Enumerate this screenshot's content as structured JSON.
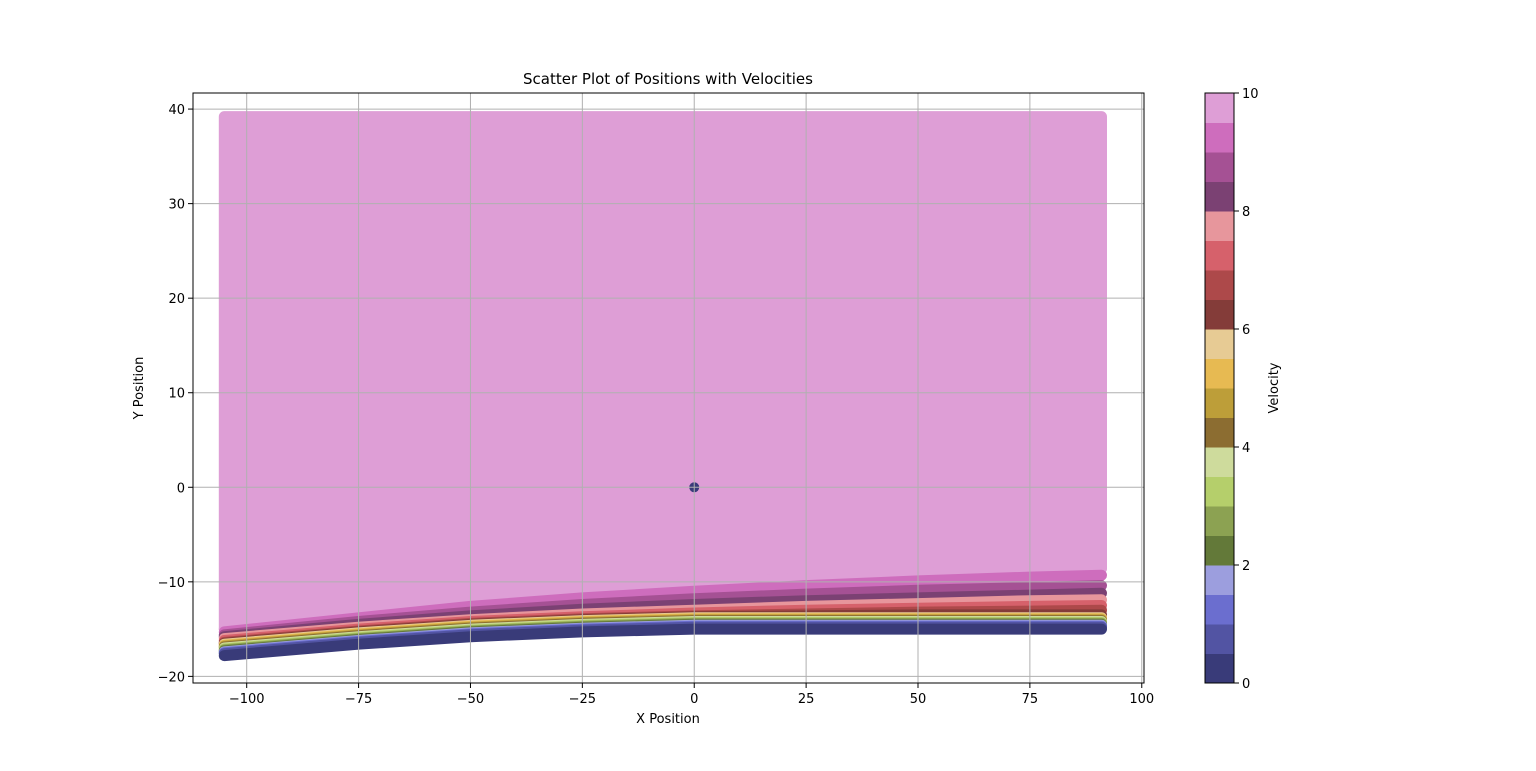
{
  "chart_data": {
    "type": "scatter",
    "title": "Scatter Plot of Positions with Velocities",
    "xlabel": "X Position",
    "ylabel": "Y Position",
    "xlim": [
      -112,
      100.5
    ],
    "ylim": [
      -20.7,
      41.7
    ],
    "x_ticks": [
      -100,
      -75,
      -50,
      -25,
      0,
      25,
      50,
      75,
      100
    ],
    "x_tick_labels": [
      "−100",
      "−75",
      "−50",
      "−25",
      "0",
      "25",
      "50",
      "75",
      "100"
    ],
    "y_ticks": [
      -20,
      -10,
      0,
      10,
      20,
      30,
      40
    ],
    "y_tick_labels": [
      "−20",
      "−10",
      "0",
      "10",
      "20",
      "30",
      "40"
    ],
    "grid": true,
    "x_extent": [
      -105,
      91
    ],
    "colorbar": {
      "label": "Velocity",
      "range": [
        0,
        10
      ],
      "ticks": [
        0,
        2,
        4,
        6,
        8,
        10
      ],
      "tick_labels": [
        "0",
        "2",
        "4",
        "6",
        "8",
        "10"
      ],
      "colormap": "tab20b",
      "colors": [
        "#393b79",
        "#5254a3",
        "#6b6ecf",
        "#9c9ede",
        "#637939",
        "#8ca252",
        "#b5cf6b",
        "#cedb9c",
        "#8c6d31",
        "#bd9e39",
        "#e7ba52",
        "#e7cb94",
        "#843c39",
        "#ad494a",
        "#d6616b",
        "#e7969c",
        "#7b4173",
        "#a55194",
        "#ce6dbd",
        "#de9ed6"
      ]
    },
    "series": [
      {
        "velocity": 0.0,
        "x": [
          -105,
          -75,
          -50,
          -25,
          0,
          25,
          50,
          75,
          91
        ],
        "y": [
          -17.8,
          -16.6,
          -15.8,
          -15.3,
          -15.0,
          -15.0,
          -15.0,
          -15.0,
          -15.0
        ]
      },
      {
        "velocity": 0.5,
        "x": [
          -105,
          -75,
          -50,
          -25,
          0,
          25,
          50,
          75,
          91
        ],
        "y": [
          -17.6,
          -16.4,
          -15.6,
          -15.1,
          -14.8,
          -14.8,
          -14.8,
          -14.8,
          -14.8
        ]
      },
      {
        "velocity": 1.0,
        "x": [
          -105,
          -75,
          -50,
          -25,
          0,
          25,
          50,
          75,
          91
        ],
        "y": [
          -17.5,
          -16.3,
          -15.5,
          -15.0,
          -14.7,
          -14.7,
          -14.7,
          -14.7,
          -14.7
        ]
      },
      {
        "velocity": 1.5,
        "x": [
          -105,
          -75,
          -50,
          -25,
          0,
          25,
          50,
          75,
          91
        ],
        "y": [
          -17.4,
          -16.2,
          -15.4,
          -14.9,
          -14.6,
          -14.6,
          -14.6,
          -14.6,
          -14.6
        ]
      },
      {
        "velocity": 2.0,
        "x": [
          -105,
          -75,
          -50,
          -25,
          0,
          25,
          50,
          75,
          91
        ],
        "y": [
          -17.3,
          -16.1,
          -15.3,
          -14.8,
          -14.5,
          -14.5,
          -14.5,
          -14.5,
          -14.5
        ]
      },
      {
        "velocity": 2.5,
        "x": [
          -105,
          -75,
          -50,
          -25,
          0,
          25,
          50,
          75,
          91
        ],
        "y": [
          -17.2,
          -16.0,
          -15.2,
          -14.7,
          -14.4,
          -14.4,
          -14.4,
          -14.4,
          -14.4
        ]
      },
      {
        "velocity": 3.0,
        "x": [
          -105,
          -75,
          -50,
          -25,
          0,
          25,
          50,
          75,
          91
        ],
        "y": [
          -17.1,
          -15.9,
          -15.1,
          -14.6,
          -14.3,
          -14.3,
          -14.3,
          -14.3,
          -14.3
        ]
      },
      {
        "velocity": 3.5,
        "x": [
          -105,
          -75,
          -50,
          -25,
          0,
          25,
          50,
          75,
          91
        ],
        "y": [
          -17.0,
          -15.8,
          -15.0,
          -14.5,
          -14.2,
          -14.2,
          -14.2,
          -14.2,
          -14.2
        ]
      },
      {
        "velocity": 4.0,
        "x": [
          -105,
          -75,
          -50,
          -25,
          0,
          25,
          50,
          75,
          91
        ],
        "y": [
          -16.9,
          -15.7,
          -14.9,
          -14.4,
          -14.1,
          -14.1,
          -14.1,
          -14.1,
          -14.1
        ]
      },
      {
        "velocity": 4.5,
        "x": [
          -105,
          -75,
          -50,
          -25,
          0,
          25,
          50,
          75,
          91
        ],
        "y": [
          -16.8,
          -15.6,
          -14.8,
          -14.3,
          -14.0,
          -14.0,
          -14.0,
          -14.0,
          -14.0
        ]
      },
      {
        "velocity": 5.0,
        "x": [
          -105,
          -75,
          -50,
          -25,
          0,
          25,
          50,
          75,
          91
        ],
        "y": [
          -16.7,
          -15.5,
          -14.7,
          -14.2,
          -13.9,
          -13.9,
          -13.9,
          -13.9,
          -13.9
        ]
      },
      {
        "velocity": 5.5,
        "x": [
          -105,
          -75,
          -50,
          -25,
          0,
          25,
          50,
          75,
          91
        ],
        "y": [
          -16.6,
          -15.4,
          -14.6,
          -14.1,
          -13.8,
          -13.8,
          -13.8,
          -13.8,
          -13.8
        ]
      },
      {
        "velocity": 6.0,
        "x": [
          -105,
          -75,
          -50,
          -25,
          0,
          25,
          50,
          75,
          91
        ],
        "y": [
          -16.5,
          -15.3,
          -14.5,
          -14.0,
          -13.7,
          -13.6,
          -13.5,
          -13.5,
          -13.5
        ]
      },
      {
        "velocity": 6.5,
        "x": [
          -105,
          -75,
          -50,
          -25,
          0,
          25,
          50,
          75,
          91
        ],
        "y": [
          -16.4,
          -15.2,
          -14.4,
          -13.9,
          -13.6,
          -13.4,
          -13.2,
          -13.1,
          -13.0
        ]
      },
      {
        "velocity": 7.0,
        "x": [
          -105,
          -75,
          -50,
          -25,
          0,
          25,
          50,
          75,
          91
        ],
        "y": [
          -16.2,
          -15.0,
          -14.2,
          -13.7,
          -13.3,
          -13.0,
          -12.8,
          -12.6,
          -12.5
        ]
      },
      {
        "velocity": 7.5,
        "x": [
          -105,
          -75,
          -50,
          -25,
          0,
          25,
          50,
          75,
          91
        ],
        "y": [
          -16.0,
          -14.8,
          -14.0,
          -13.4,
          -13.0,
          -12.6,
          -12.3,
          -12.0,
          -11.9
        ]
      },
      {
        "velocity": 8.0,
        "x": [
          -105,
          -75,
          -50,
          -25,
          0,
          25,
          50,
          75,
          91
        ],
        "y": [
          -15.8,
          -14.5,
          -13.6,
          -12.9,
          -12.4,
          -12.0,
          -11.7,
          -11.4,
          -11.2
        ]
      },
      {
        "velocity": 8.5,
        "x": [
          -105,
          -75,
          -50,
          -25,
          0,
          25,
          50,
          75,
          91
        ],
        "y": [
          -15.6,
          -14.2,
          -13.2,
          -12.4,
          -11.8,
          -11.3,
          -10.9,
          -10.6,
          -10.4
        ]
      },
      {
        "velocity": 9.0,
        "x": [
          -105,
          -75,
          -50,
          -25,
          0,
          25,
          50,
          75,
          91
        ],
        "y": [
          -15.3,
          -13.8,
          -12.6,
          -11.7,
          -11.0,
          -10.4,
          -9.9,
          -9.5,
          -9.3
        ]
      },
      {
        "velocity": 9.5,
        "x": [
          -105,
          -75,
          -50,
          -25,
          0,
          25,
          50,
          75,
          91
        ],
        "y": [
          -15.0,
          -13.3,
          -12.0,
          -11.0,
          -10.2,
          -9.6,
          -9.1,
          -8.8,
          -8.6
        ]
      },
      {
        "velocity": 10.0,
        "x": [
          -105,
          -75,
          -50,
          -25,
          0,
          25,
          50,
          75,
          91
        ],
        "y": [
          39.2,
          39.2,
          39.2,
          39.2,
          39.2,
          39.2,
          39.2,
          39.2,
          39.2
        ]
      }
    ],
    "origin_point": {
      "x": 0,
      "y": 0,
      "velocity": 0
    }
  }
}
